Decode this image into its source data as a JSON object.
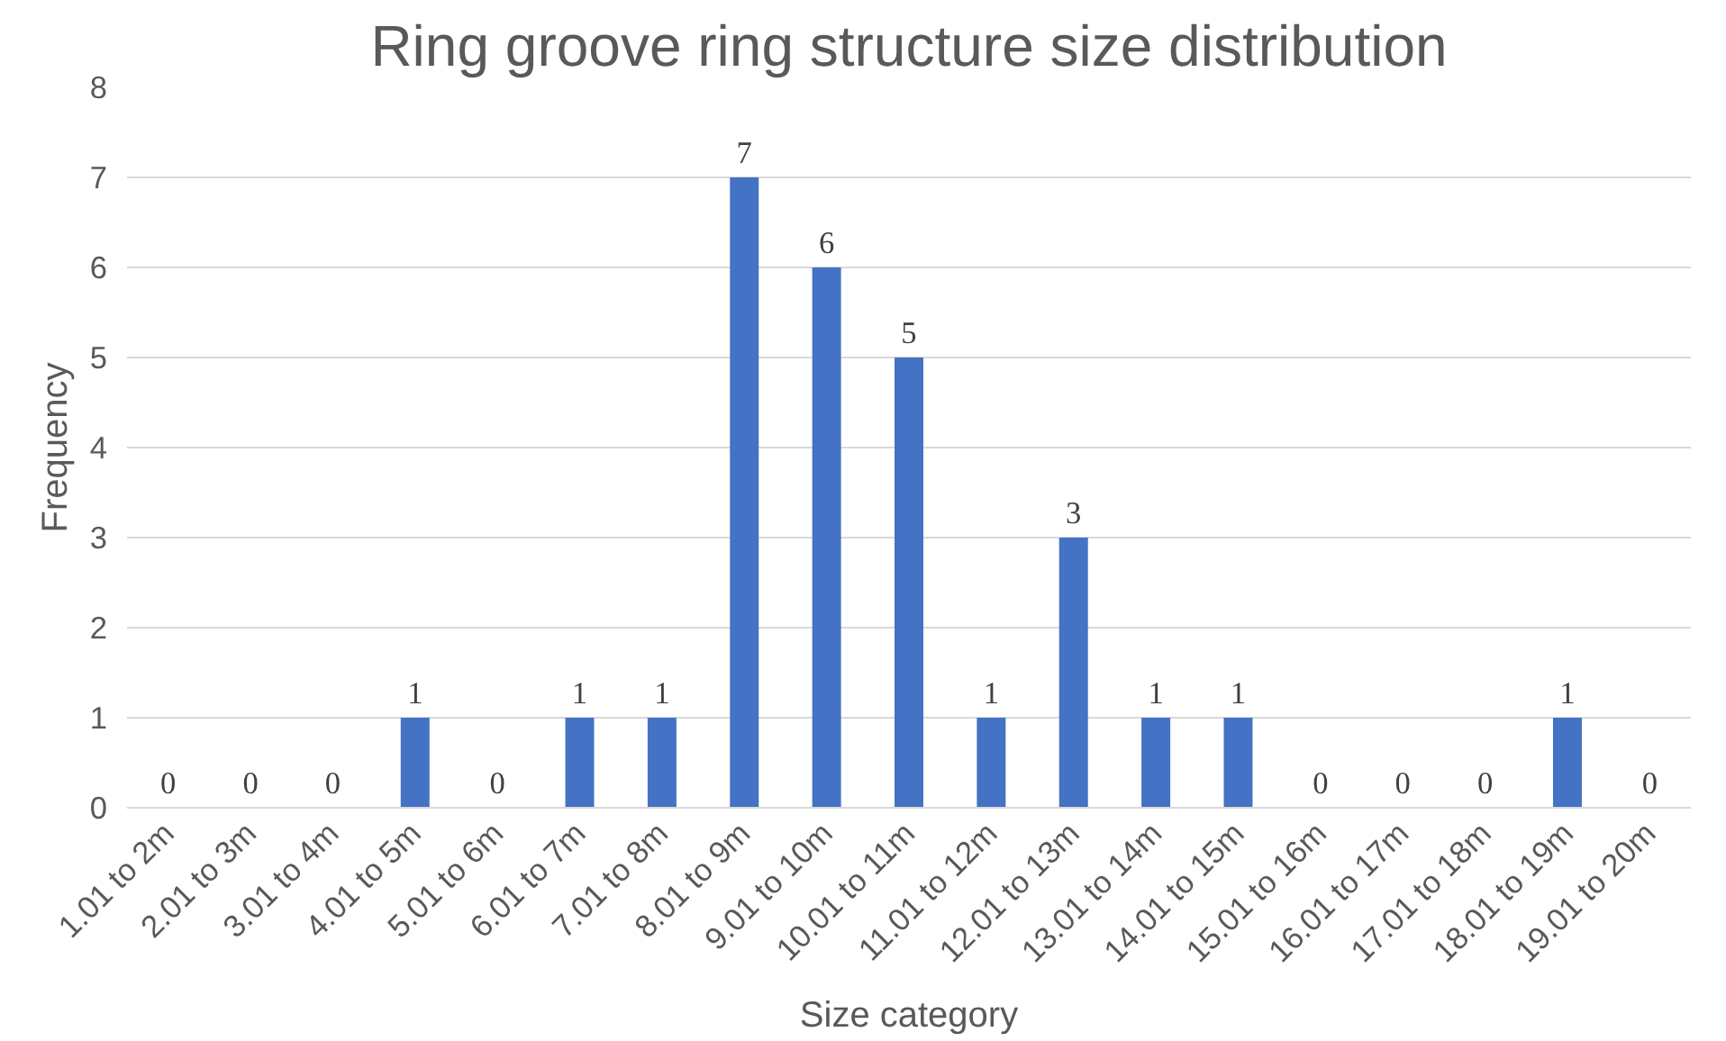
{
  "chart_data": {
    "type": "bar",
    "title": "Ring groove ring structure size distribution",
    "xlabel": "Size category",
    "ylabel": "Frequency",
    "categories": [
      "1.01 to 2m",
      "2.01 to 3m",
      "3.01 to 4m",
      "4.01 to 5m",
      "5.01 to 6m",
      "6.01 to 7m",
      "7.01 to 8m",
      "8.01 to 9m",
      "9.01 to 10m",
      "10.01 to 11m",
      "11.01 to 12m",
      "12.01 to 13m",
      "13.01 to 14m",
      "14.01 to 15m",
      "15.01 to 16m",
      "16.01 to 17m",
      "17.01 to 18m",
      "18.01 to 19m",
      "19.01 to 20m"
    ],
    "values": [
      0,
      0,
      0,
      1,
      0,
      1,
      1,
      7,
      6,
      5,
      1,
      3,
      1,
      1,
      0,
      0,
      0,
      1,
      0
    ],
    "color": "#4472c4",
    "ylim": [
      0,
      8
    ],
    "yticks": [
      0,
      1,
      2,
      3,
      4,
      5,
      6,
      7,
      8
    ],
    "grid": "y",
    "data_labels": true
  }
}
